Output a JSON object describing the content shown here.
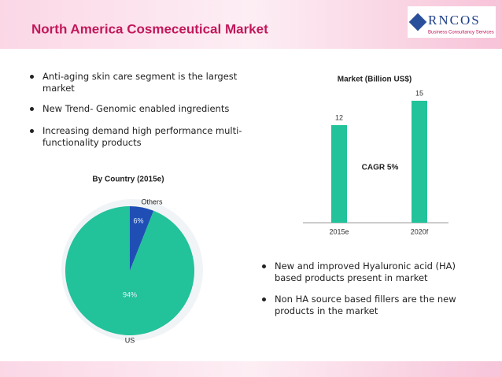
{
  "header": {
    "title": "North America Cosmeceutical Market",
    "logo": "RNCOS",
    "logo_tagline": "Business Consultancy Services"
  },
  "bullets_left": [
    "Anti-aging skin care segment is the largest market",
    "New Trend- Genomic enabled ingredients",
    "Increasing demand high performance multi-functionality products"
  ],
  "bullets_right": [
    "New and improved Hyaluronic acid (HA) based products  present in market",
    "Non HA source based fillers are the new products in the market"
  ],
  "chart_data": [
    {
      "type": "bar",
      "title": "Market (Billion US$)",
      "categories": [
        "2015e",
        "2020f"
      ],
      "values": [
        12,
        15
      ],
      "color": "#22c29a",
      "annotation": "CAGR 5%"
    },
    {
      "type": "pie",
      "title": "By Country (2015e)",
      "categories": [
        "US",
        "Others"
      ],
      "values": [
        94,
        6
      ],
      "value_labels": [
        "94%",
        "6%"
      ],
      "colors": [
        "#22c29a",
        "#1f4fb5"
      ]
    }
  ]
}
